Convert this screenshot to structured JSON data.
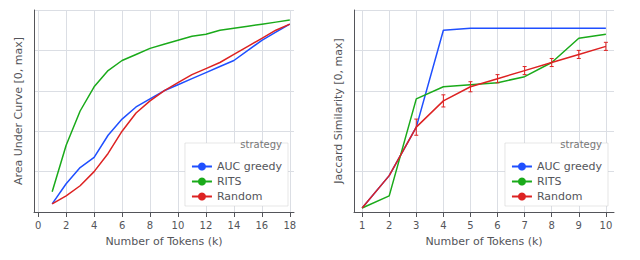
{
  "chart_data": [
    {
      "type": "line",
      "x_label": "Number of Tokens (k)",
      "y_label": "Area Under Curve [0, max]",
      "x": [
        1,
        2,
        3,
        4,
        5,
        6,
        7,
        8,
        9,
        10,
        11,
        12,
        13,
        14,
        15,
        16,
        17,
        18
      ],
      "series": [
        {
          "name": "AUC greedy",
          "color": "#1f4fff",
          "values": [
            0.04,
            0.14,
            0.22,
            0.27,
            0.38,
            0.46,
            0.52,
            0.56,
            0.6,
            0.63,
            0.66,
            0.69,
            0.72,
            0.75,
            0.8,
            0.85,
            0.89,
            0.93
          ]
        },
        {
          "name": "RITS",
          "color": "#1aaa1a",
          "values": [
            0.1,
            0.33,
            0.5,
            0.62,
            0.7,
            0.75,
            0.78,
            0.81,
            0.83,
            0.85,
            0.87,
            0.88,
            0.9,
            0.91,
            0.92,
            0.93,
            0.94,
            0.95
          ]
        },
        {
          "name": "Random",
          "color": "#dd2222",
          "values": [
            0.04,
            0.08,
            0.13,
            0.2,
            0.29,
            0.4,
            0.49,
            0.55,
            0.6,
            0.64,
            0.68,
            0.71,
            0.74,
            0.78,
            0.82,
            0.86,
            0.9,
            0.93
          ]
        }
      ],
      "xlim": [
        -0.3,
        18.3
      ],
      "xticks": [
        0,
        2,
        4,
        6,
        8,
        10,
        12,
        14,
        16,
        18
      ],
      "ylim": [
        0,
        1
      ],
      "yticks": [
        0,
        0.2,
        0.4,
        0.6,
        0.8,
        1
      ],
      "grid": true,
      "tick_labels": "x",
      "legend": "lower right",
      "legend_title": "strategy"
    },
    {
      "type": "line",
      "x_label": "Number of Tokens (k)",
      "y_label": "Jaccard Similarity [0, max]",
      "x": [
        1,
        2,
        3,
        4,
        5,
        6,
        7,
        8,
        9,
        10
      ],
      "series": [
        {
          "name": "AUC greedy",
          "color": "#1f4fff",
          "values": [
            0.02,
            0.18,
            0.42,
            0.9,
            0.91,
            0.91,
            0.91,
            0.91,
            0.91,
            0.91
          ]
        },
        {
          "name": "RITS",
          "color": "#1aaa1a",
          "values": [
            0.02,
            0.08,
            0.56,
            0.62,
            0.63,
            0.64,
            0.67,
            0.74,
            0.86,
            0.88
          ]
        },
        {
          "name": "Random",
          "color": "#dd2222",
          "values": [
            0.02,
            0.18,
            0.42,
            0.55,
            0.62,
            0.66,
            0.7,
            0.74,
            0.78,
            0.82
          ],
          "errors": [
            0.0,
            0.0,
            0.04,
            0.03,
            0.025,
            0.02,
            0.02,
            0.02,
            0.02,
            0.02
          ]
        }
      ],
      "xlim": [
        0.7,
        10.3
      ],
      "xticks": [
        1,
        2,
        3,
        4,
        5,
        6,
        7,
        8,
        9,
        10
      ],
      "ylim": [
        0,
        1
      ],
      "yticks": [
        0,
        0.2,
        0.4,
        0.6,
        0.8,
        1
      ],
      "grid": true,
      "tick_labels": "x",
      "legend": "lower right",
      "legend_title": "strategy"
    }
  ]
}
